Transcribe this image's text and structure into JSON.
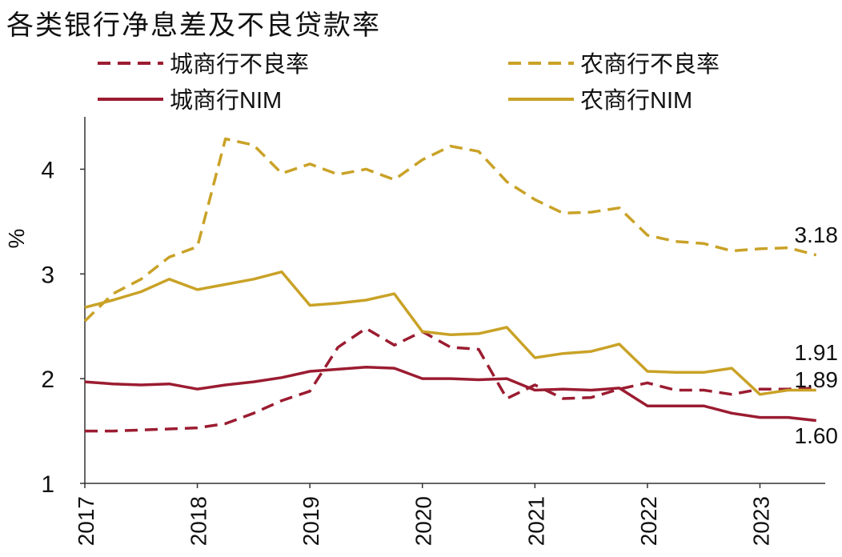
{
  "chart_data": {
    "type": "line",
    "title": "各类银行净息差及不良贷款率",
    "xlabel": "",
    "ylabel": "%",
    "ylim": [
      1,
      4.5
    ],
    "yticks": [
      "1",
      "2",
      "3",
      "4"
    ],
    "xticks": [
      "2017",
      "2018",
      "2019",
      "2020",
      "2021",
      "2022",
      "2023"
    ],
    "xlim": [
      2017.0,
      2023.58
    ],
    "grid": false,
    "legend_position": "top",
    "x": [
      2017.0,
      2017.25,
      2017.5,
      2017.75,
      2018.0,
      2018.25,
      2018.5,
      2018.75,
      2019.0,
      2019.25,
      2019.5,
      2019.75,
      2020.0,
      2020.25,
      2020.5,
      2020.75,
      2021.0,
      2021.25,
      2021.5,
      2021.75,
      2022.0,
      2022.25,
      2022.5,
      2022.75,
      2023.0,
      2023.25,
      2023.5
    ],
    "series": [
      {
        "name": "城商行不良率",
        "color": "#9B1C31",
        "dash": true,
        "values": [
          1.5,
          1.5,
          1.51,
          1.52,
          1.53,
          1.57,
          1.67,
          1.79,
          1.88,
          2.3,
          2.48,
          2.32,
          2.45,
          2.3,
          2.28,
          1.81,
          1.94,
          1.81,
          1.82,
          1.9,
          1.96,
          1.89,
          1.89,
          1.85,
          1.9,
          1.9,
          1.91
        ],
        "end_label": "1.91"
      },
      {
        "name": "农商行不良率",
        "color": "#C9A227",
        "dash": true,
        "values": [
          2.55,
          2.81,
          2.95,
          3.16,
          3.26,
          4.29,
          4.23,
          3.96,
          4.05,
          3.95,
          4.0,
          3.9,
          4.09,
          4.22,
          4.17,
          3.88,
          3.71,
          3.58,
          3.59,
          3.63,
          3.37,
          3.31,
          3.29,
          3.22,
          3.24,
          3.25,
          3.18
        ],
        "end_label": "3.18"
      },
      {
        "name": "城商行NIM",
        "color": "#9B1C31",
        "dash": false,
        "values": [
          1.97,
          1.95,
          1.94,
          1.95,
          1.9,
          1.94,
          1.97,
          2.01,
          2.07,
          2.09,
          2.11,
          2.1,
          2.0,
          2.0,
          1.99,
          2.0,
          1.89,
          1.9,
          1.89,
          1.91,
          1.74,
          1.74,
          1.74,
          1.67,
          1.63,
          1.63,
          1.6
        ],
        "end_label": "1.60"
      },
      {
        "name": "农商行NIM",
        "color": "#C9A227",
        "dash": false,
        "values": [
          2.68,
          2.75,
          2.83,
          2.95,
          2.85,
          2.9,
          2.95,
          3.02,
          2.7,
          2.72,
          2.75,
          2.81,
          2.45,
          2.42,
          2.43,
          2.49,
          2.2,
          2.24,
          2.26,
          2.33,
          2.07,
          2.06,
          2.06,
          2.1,
          1.85,
          1.89,
          1.89
        ],
        "end_label": "1.89"
      }
    ]
  }
}
